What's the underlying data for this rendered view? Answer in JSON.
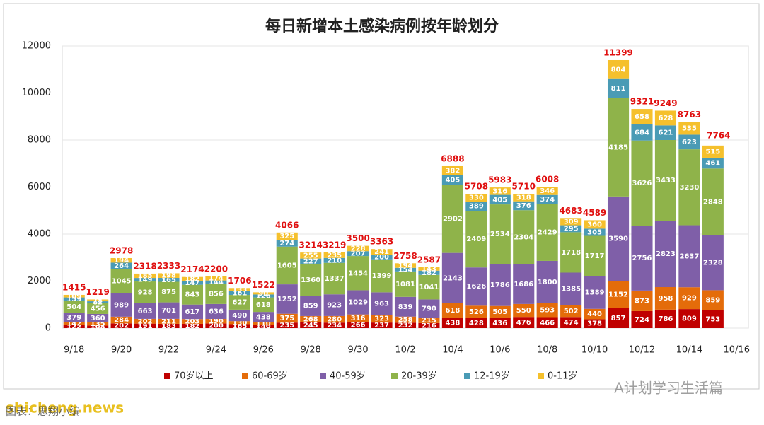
{
  "chart_data": {
    "type": "stacked_bar",
    "title": "每日新增本土感染病例按年龄划分",
    "categories": [
      "9/18",
      null,
      "9/20",
      null,
      "9/22",
      null,
      "9/24",
      null,
      "9/26",
      null,
      "9/28",
      null,
      "9/30",
      null,
      "10/2",
      null,
      "10/4",
      null,
      "10/6",
      null,
      "10/8",
      null,
      "10/10",
      null,
      "10/12",
      null,
      "10/14",
      null,
      "10/16"
    ],
    "series": [
      {
        "name": "70岁以上",
        "color": "#c00000",
        "values": [
          122,
          108,
          202,
          191,
          183,
          182,
          200,
          165,
          140,
          235,
          245,
          234,
          266,
          237,
          232,
          216,
          438,
          428,
          436,
          476,
          466,
          474,
          378,
          857,
          724,
          786,
          809,
          753,
          null
        ]
      },
      {
        "name": "60-69岁",
        "color": "#e46c0a",
        "values": [
          142,
          135,
          284,
          202,
          211,
          203,
          190,
          130,
          110,
          375,
          268,
          280,
          316,
          323,
          258,
          215,
          618,
          526,
          505,
          550,
          593,
          502,
          440,
          1152,
          873,
          958,
          929,
          859,
          null
        ]
      },
      {
        "name": "40-59岁",
        "color": "#7f5fa8",
        "values": [
          379,
          360,
          989,
          663,
          701,
          617,
          636,
          490,
          438,
          1252,
          859,
          923,
          1029,
          963,
          839,
          790,
          2143,
          1626,
          1786,
          1686,
          1800,
          1385,
          1389,
          3590,
          2756,
          2823,
          2637,
          2328,
          null
        ]
      },
      {
        "name": "20-39岁",
        "color": "#8fb34a",
        "values": [
          504,
          456,
          1045,
          928,
          875,
          843,
          856,
          627,
          618,
          1605,
          1360,
          1337,
          1454,
          1399,
          1081,
          1041,
          2902,
          2409,
          2534,
          2304,
          2429,
          1718,
          1717,
          4185,
          3626,
          3433,
          3230,
          2848,
          null
        ]
      },
      {
        "name": "12-19岁",
        "color": "#4a9bb5",
        "values": [
          159,
          82,
          264,
          149,
          165,
          147,
          144,
          161,
          126,
          274,
          227,
          210,
          207,
          200,
          154,
          182,
          405,
          389,
          405,
          376,
          374,
          295,
          305,
          811,
          684,
          621,
          623,
          461,
          null
        ]
      },
      {
        "name": "0-11岁",
        "color": "#f5c02c",
        "values": [
          109,
          78,
          194,
          185,
          198,
          182,
          174,
          133,
          90,
          325,
          255,
          235,
          228,
          241,
          194,
          143,
          382,
          330,
          316,
          318,
          346,
          309,
          360,
          804,
          658,
          628,
          535,
          515,
          null
        ]
      }
    ],
    "totals": [
      1415,
      1219,
      2978,
      2318,
      2333,
      2174,
      2200,
      1706,
      1522,
      4066,
      3214,
      3219,
      3500,
      3363,
      2758,
      2587,
      6888,
      5708,
      5983,
      5710,
      6008,
      4683,
      4589,
      11399,
      9321,
      9249,
      8763,
      7764,
      null
    ],
    "ylim": [
      0,
      12000
    ],
    "yticks": [
      0,
      2000,
      4000,
      6000,
      8000,
      10000,
      12000
    ],
    "grid": true,
    "legend": "bottom",
    "watermark": "A计划学习生活篇",
    "site": "shicheng.news",
    "source": "图表：思翔小编"
  }
}
